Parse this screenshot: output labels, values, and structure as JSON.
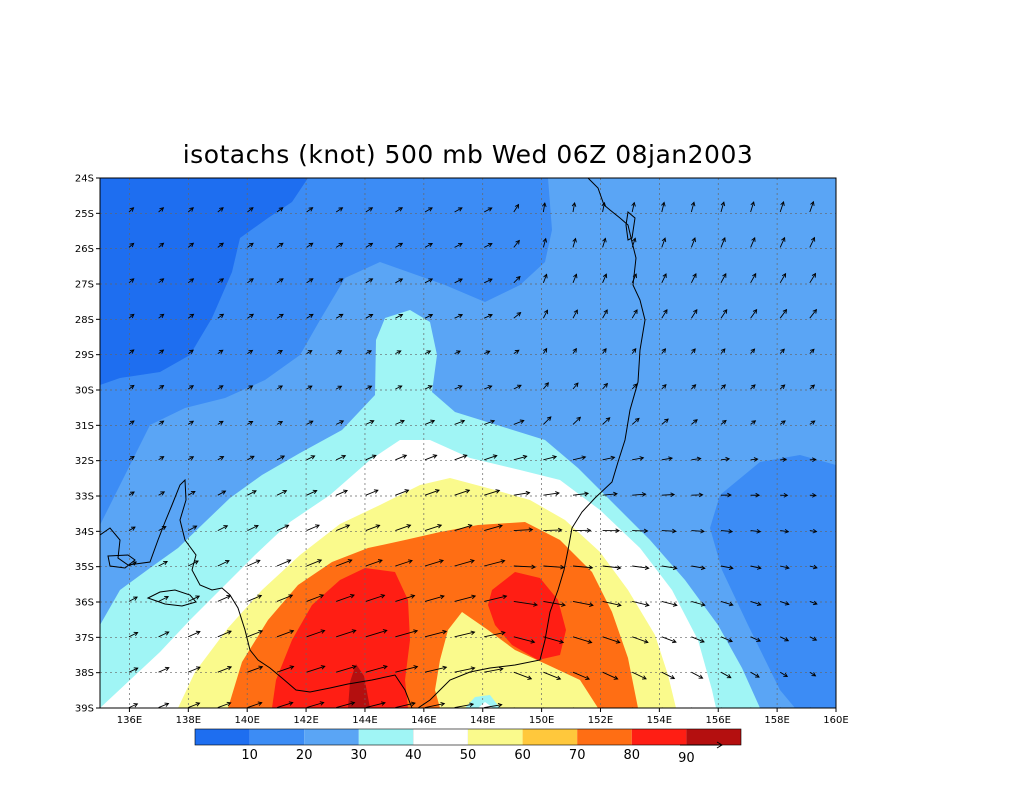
{
  "title": "isotachs (knot) 500 mb Wed 06Z 08jan2003",
  "map": {
    "lon_range": [
      135,
      160
    ],
    "lat_range": [
      -24,
      -39
    ],
    "lon_ticks": [
      {
        "value": 136,
        "label": "136E"
      },
      {
        "value": 138,
        "label": "138E"
      },
      {
        "value": 140,
        "label": "140E"
      },
      {
        "value": 142,
        "label": "142E"
      },
      {
        "value": 144,
        "label": "144E"
      },
      {
        "value": 146,
        "label": "146E"
      },
      {
        "value": 148,
        "label": "148E"
      },
      {
        "value": 150,
        "label": "150E"
      },
      {
        "value": 152,
        "label": "152E"
      },
      {
        "value": 154,
        "label": "154E"
      },
      {
        "value": 156,
        "label": "156E"
      },
      {
        "value": 158,
        "label": "158E"
      },
      {
        "value": 160,
        "label": "160E"
      }
    ],
    "lat_ticks": [
      {
        "value": -24,
        "label": "24S"
      },
      {
        "value": -25,
        "label": "25S"
      },
      {
        "value": -26,
        "label": "26S"
      },
      {
        "value": -27,
        "label": "27S"
      },
      {
        "value": -28,
        "label": "28S"
      },
      {
        "value": -29,
        "label": "29S"
      },
      {
        "value": -30,
        "label": "30S"
      },
      {
        "value": -31,
        "label": "31S"
      },
      {
        "value": -32,
        "label": "32S"
      },
      {
        "value": -33,
        "label": "33S"
      },
      {
        "value": -34,
        "label": "34S"
      },
      {
        "value": -35,
        "label": "35S"
      },
      {
        "value": -36,
        "label": "36S"
      },
      {
        "value": -37,
        "label": "37S"
      },
      {
        "value": -38,
        "label": "38S"
      },
      {
        "value": -39,
        "label": "39S"
      }
    ],
    "grid": true
  },
  "colorbar": {
    "colors": [
      "#1e6ef0",
      "#3c8cf5",
      "#5aa5f5",
      "#a0f5f5",
      "#ffffff",
      "#fafa8c",
      "#ffc83c",
      "#ff6e14",
      "#ff1e14",
      "#b40f0f"
    ],
    "labels": [
      "10",
      "20",
      "30",
      "40",
      "50",
      "60",
      "70",
      "80",
      "90"
    ]
  }
}
